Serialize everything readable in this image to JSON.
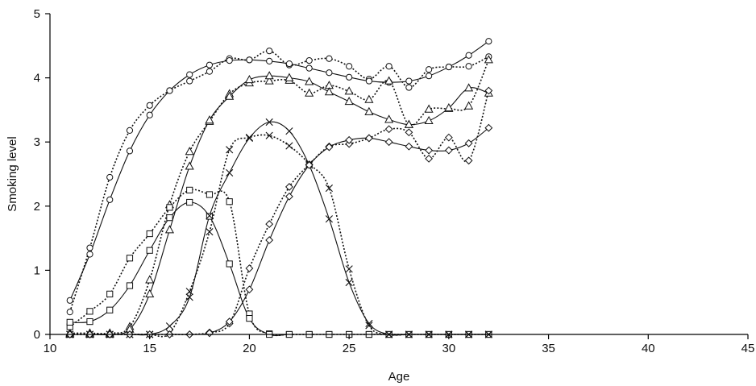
{
  "chart_data": {
    "type": "line",
    "title": "",
    "xlabel": "Age",
    "ylabel": "Smoking level",
    "xlim": [
      10,
      45
    ],
    "ylim": [
      0,
      5
    ],
    "x_ticks": [
      10,
      15,
      20,
      25,
      30,
      35,
      40,
      45
    ],
    "y_ticks": [
      0,
      1,
      2,
      3,
      4,
      5
    ],
    "grid": false,
    "legend": "none",
    "x": [
      11,
      12,
      13,
      14,
      15,
      16,
      17,
      18,
      19,
      20,
      21,
      22,
      23,
      24,
      25,
      26,
      27,
      28,
      29,
      30,
      31,
      32
    ],
    "series": [
      {
        "marker": "circle",
        "style": "dotted",
        "values": [
          0.35,
          1.35,
          2.45,
          3.18,
          3.57,
          3.8,
          3.95,
          4.1,
          4.3,
          4.28,
          4.42,
          4.2,
          4.27,
          4.3,
          4.18,
          3.98,
          4.18,
          3.85,
          4.13,
          4.17,
          4.18,
          4.33
        ]
      },
      {
        "marker": "circle",
        "style": "solid",
        "values": [
          0.53,
          1.25,
          2.1,
          2.86,
          3.42,
          3.8,
          4.05,
          4.2,
          4.27,
          4.28,
          4.26,
          4.22,
          4.15,
          4.08,
          4.01,
          3.95,
          3.93,
          3.95,
          4.03,
          4.17,
          4.35,
          4.57
        ]
      },
      {
        "marker": "triangle",
        "style": "dotted",
        "values": [
          0.02,
          0.02,
          0.02,
          0.12,
          0.85,
          2.02,
          2.85,
          3.32,
          3.75,
          3.92,
          3.95,
          3.96,
          3.76,
          3.88,
          3.79,
          3.66,
          3.95,
          3.27,
          3.51,
          3.52,
          3.56,
          4.28
        ]
      },
      {
        "marker": "triangle",
        "style": "solid",
        "values": [
          0.0,
          0.0,
          0.0,
          0.08,
          0.63,
          1.63,
          2.62,
          3.34,
          3.71,
          3.97,
          4.03,
          4.0,
          3.94,
          3.78,
          3.63,
          3.47,
          3.35,
          3.27,
          3.33,
          3.53,
          3.84,
          3.76
        ]
      },
      {
        "marker": "square",
        "style": "dotted",
        "values": [
          0.12,
          0.36,
          0.63,
          1.19,
          1.57,
          1.98,
          2.25,
          2.18,
          2.07,
          0.32,
          0.01,
          0.0,
          0.0,
          0.0,
          0.0,
          0.0,
          0.0,
          0.0,
          0.0,
          0.0,
          0.0,
          0.0
        ]
      },
      {
        "marker": "square",
        "style": "solid",
        "values": [
          0.19,
          0.2,
          0.38,
          0.76,
          1.31,
          1.82,
          2.06,
          1.84,
          1.1,
          0.25,
          0.0,
          0.0,
          0.0,
          0.0,
          0.0,
          0.0,
          0.0,
          0.0,
          0.0,
          0.0,
          0.0,
          0.0
        ]
      },
      {
        "marker": "x",
        "style": "dotted",
        "values": [
          0.0,
          0.0,
          0.0,
          0.0,
          0.0,
          0.02,
          0.67,
          1.6,
          2.88,
          3.07,
          3.1,
          2.94,
          2.66,
          2.28,
          1.02,
          0.14,
          0.0,
          0.0,
          0.0,
          0.0,
          0.0,
          0.0
        ]
      },
      {
        "marker": "x",
        "style": "solid",
        "values": [
          0.0,
          0.0,
          0.0,
          0.0,
          0.0,
          0.13,
          0.58,
          1.85,
          2.52,
          3.06,
          3.31,
          3.17,
          2.64,
          1.8,
          0.81,
          0.17,
          0.0,
          0.0,
          0.0,
          0.0,
          0.0,
          0.0
        ]
      },
      {
        "marker": "diamond",
        "style": "dotted",
        "values": [
          0.0,
          0.0,
          0.0,
          0.0,
          0.0,
          0.0,
          0.0,
          0.03,
          0.17,
          1.03,
          1.72,
          2.3,
          2.65,
          2.93,
          2.97,
          3.06,
          3.2,
          3.15,
          2.74,
          3.07,
          2.71,
          3.8
        ]
      },
      {
        "marker": "diamond",
        "style": "solid",
        "values": [
          0.0,
          0.0,
          0.0,
          0.0,
          0.0,
          0.0,
          0.0,
          0.02,
          0.2,
          0.7,
          1.47,
          2.15,
          2.64,
          2.92,
          3.03,
          3.06,
          3.0,
          2.93,
          2.87,
          2.87,
          2.98,
          3.22
        ]
      }
    ]
  }
}
